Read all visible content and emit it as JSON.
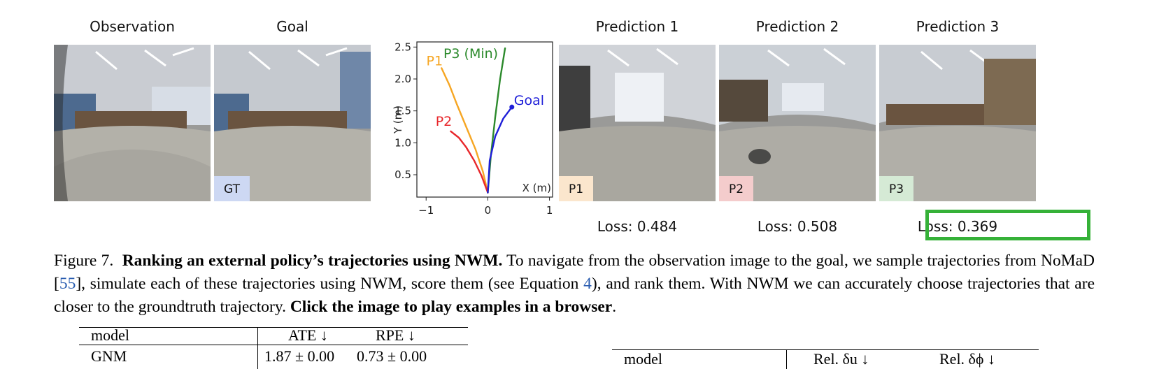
{
  "panels": {
    "observation": {
      "title": "Observation"
    },
    "goal": {
      "title": "Goal",
      "tag": "GT",
      "tag_color": "#cdd8f3"
    },
    "pred1": {
      "title": "Prediction 1",
      "tag": "P1",
      "tag_color": "#fbe6cd",
      "loss": "Loss: 0.484"
    },
    "pred2": {
      "title": "Prediction 2",
      "tag": "P2",
      "tag_color": "#f4cccc",
      "loss": "Loss: 0.508"
    },
    "pred3": {
      "title": "Prediction 3",
      "tag": "P3",
      "tag_color": "#d5ead5",
      "loss": "Loss: 0.369",
      "highlight_color": "#35b138"
    }
  },
  "chart_data": {
    "type": "line",
    "xlabel": "X (m)",
    "ylabel": "Y (m)",
    "xlim": [
      -1.15,
      1.05
    ],
    "ylim": [
      0.15,
      2.58
    ],
    "xticks": [
      "−1",
      "0",
      "1"
    ],
    "yticks": [
      "0.5",
      "1.0",
      "1.5",
      "2.0",
      "2.5"
    ],
    "series": [
      {
        "name": "P1",
        "color": "#f6a623",
        "x": [
          0.0,
          -0.08,
          -0.2,
          -0.35,
          -0.5,
          -0.62,
          -0.75
        ],
        "y": [
          0.22,
          0.55,
          0.9,
          1.25,
          1.6,
          1.9,
          2.17
        ]
      },
      {
        "name": "P2",
        "color": "#e8272b",
        "x": [
          0.0,
          -0.1,
          -0.22,
          -0.35,
          -0.47,
          -0.6
        ],
        "y": [
          0.22,
          0.48,
          0.72,
          0.93,
          1.08,
          1.18
        ]
      },
      {
        "name": "P3 (Min)",
        "color": "#2c8a2c",
        "x": [
          0.0,
          0.05,
          0.12,
          0.2,
          0.28
        ],
        "y": [
          0.22,
          0.8,
          1.4,
          2.0,
          2.48
        ]
      },
      {
        "name": "Goal",
        "color": "#1f1fd8",
        "x": [
          0.0,
          0.03,
          0.12,
          0.25,
          0.39
        ],
        "y": [
          0.22,
          0.72,
          1.1,
          1.38,
          1.56
        ]
      }
    ]
  },
  "caption": {
    "figure_label": "Figure 7.",
    "bold_title": "Ranking an external policy’s trajectories using NWM.",
    "text_1": "To navigate from the observation image to the goal, we sample trajectories from NoMaD [",
    "ref_55": "55",
    "text_2": "], simulate each of these trajectories using NWM, score them (see Equation ",
    "ref_eq": "4",
    "text_3": "), and rank them. With NWM we can accurately choose trajectories that are closer to the groundtruth trajectory.",
    "bold_end": "Click the image to play examples in a browser",
    "period": "."
  },
  "table_left": {
    "col_model": "model",
    "col_ate": "ATE ↓",
    "col_rpe": "RPE ↓",
    "row1_model": "GNM",
    "row1_ate": "1.87 ± 0.00",
    "row1_rpe": "0.73 ± 0.00"
  },
  "table_right": {
    "col_model": "model",
    "col_rel_u": "Rel. δu ↓",
    "col_rel_phi": "Rel. δϕ ↓"
  }
}
